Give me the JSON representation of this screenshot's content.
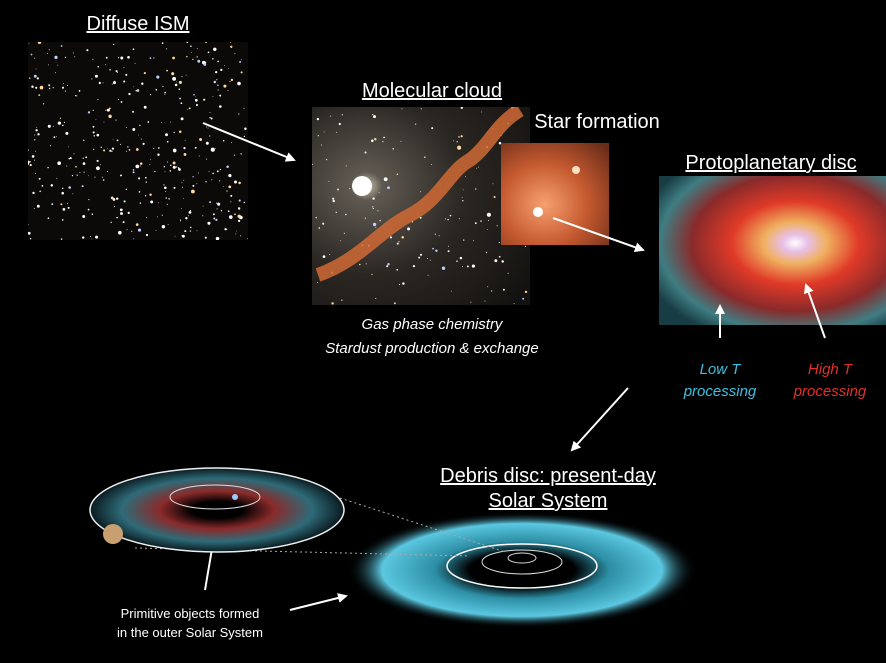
{
  "nodes": [
    {
      "label": "Diffuse ISM"
    },
    {
      "label": "Molecular cloud"
    },
    {
      "label": "Star formation"
    },
    {
      "label": "Protoplanetary disc"
    },
    {
      "label": [
        "Debris disc: present-day",
        "Solar System"
      ]
    }
  ],
  "notes": {
    "molecular_cloud": [
      "Gas phase chemistry",
      "Stardust production & exchange"
    ],
    "low_t": [
      "Low T",
      "processing"
    ],
    "high_t": [
      "High T",
      "processing"
    ],
    "primitive_objects": [
      "Primitive objects formed",
      "in the outer Solar System"
    ]
  }
}
